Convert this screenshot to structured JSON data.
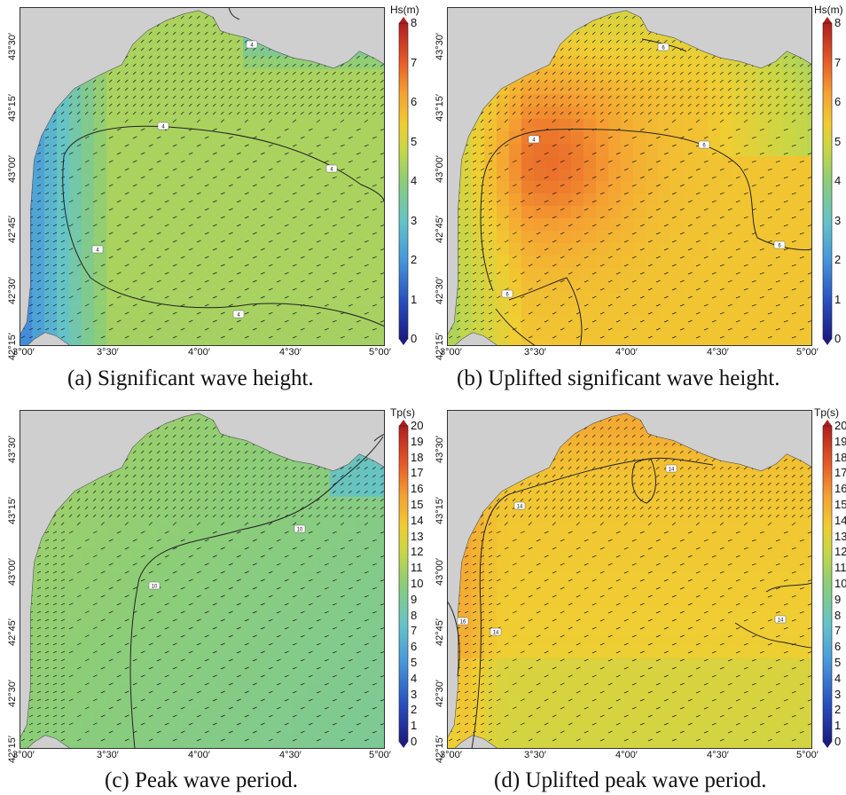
{
  "panels": [
    {
      "id": "a",
      "caption": "(a) Significant wave height.",
      "variable_label": "Hs(m)",
      "colorbar_ticks": [
        "0",
        "1",
        "2",
        "3",
        "4",
        "5",
        "6",
        "7",
        "8"
      ],
      "contour_labels": [
        "4",
        "4",
        "4",
        "4",
        "4"
      ],
      "x_ticks": [
        "3°00′",
        "3°30′",
        "4°00′",
        "4°30′",
        "5°00′"
      ],
      "y_ticks": [
        "42°15′",
        "42°30′",
        "42°45′",
        "43°00′",
        "43°15′",
        "43°30′"
      ],
      "field": "hs"
    },
    {
      "id": "b",
      "caption": "(b) Uplifted significant wave height.",
      "variable_label": "Hs(m)",
      "colorbar_ticks": [
        "0",
        "1",
        "2",
        "3",
        "4",
        "5",
        "6",
        "7",
        "8"
      ],
      "contour_labels": [
        "4",
        "6",
        "6",
        "6",
        "6"
      ],
      "x_ticks": [
        "3°00′",
        "3°30′",
        "4°00′",
        "4°30′",
        "5°00′"
      ],
      "y_ticks": [
        "42°15′",
        "42°30′",
        "42°45′",
        "43°00′",
        "43°15′",
        "43°30′"
      ],
      "field": "hs_up"
    },
    {
      "id": "c",
      "caption": "(c) Peak wave period.",
      "variable_label": "Tp(s)",
      "colorbar_ticks": [
        "0",
        "1",
        "2",
        "3",
        "4",
        "5",
        "6",
        "7",
        "8",
        "9",
        "10",
        "11",
        "12",
        "13",
        "14",
        "15",
        "16",
        "17",
        "18",
        "19",
        "20"
      ],
      "contour_labels": [
        "10",
        "10"
      ],
      "x_ticks": [
        "3°00′",
        "3°30′",
        "4°00′",
        "4°30′",
        "5°00′"
      ],
      "y_ticks": [
        "42°15′",
        "42°30′",
        "42°45′",
        "43°00′",
        "43°15′",
        "43°30′"
      ],
      "field": "tp"
    },
    {
      "id": "d",
      "caption": "(d) Uplifted peak wave period.",
      "variable_label": "Tp(s)",
      "colorbar_ticks": [
        "0",
        "1",
        "2",
        "3",
        "4",
        "5",
        "6",
        "7",
        "8",
        "9",
        "10",
        "11",
        "12",
        "13",
        "14",
        "15",
        "16",
        "17",
        "18",
        "19",
        "20"
      ],
      "contour_labels": [
        "14",
        "14",
        "16",
        "14",
        "14"
      ],
      "x_ticks": [
        "3°00′",
        "3°30′",
        "4°00′",
        "4°30′",
        "5°00′"
      ],
      "y_ticks": [
        "42°15′",
        "42°30′",
        "42°45′",
        "43°00′",
        "43°15′",
        "43°30′"
      ],
      "field": "tp_up"
    }
  ]
}
